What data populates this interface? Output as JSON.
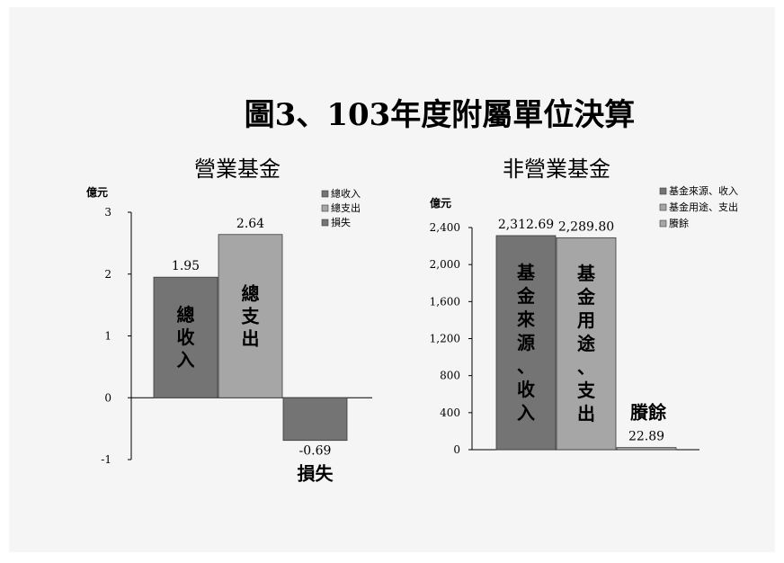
{
  "title": "圖3、103年度附屬單位決算",
  "colors": {
    "background_panel": "#f5f5f5",
    "bar_dark": "#747474",
    "bar_light": "#a6a6a6",
    "bar_stroke": "#3a3a3a",
    "axis": "#000000"
  },
  "chart_data": [
    {
      "type": "bar",
      "title": "營業基金",
      "unit_label": "億元",
      "ylim": [
        -1,
        3
      ],
      "yticks": [
        "3",
        "2",
        "1",
        "0",
        "-1"
      ],
      "ytick_values": [
        3,
        2,
        1,
        0,
        -1
      ],
      "categories": [
        "總收入",
        "總支出",
        "損失"
      ],
      "values": [
        1.95,
        2.64,
        -0.69
      ],
      "value_labels": [
        "1.95",
        "2.64",
        "-0.69"
      ],
      "bar_colors": [
        "#747474",
        "#a6a6a6",
        "#747474"
      ],
      "inner_labels": [
        "總\n收\n入",
        "總\n支\n出",
        ""
      ],
      "outside_labels": [
        "",
        "",
        "損失"
      ],
      "legend": [
        {
          "label": "總收入",
          "color": "#747474"
        },
        {
          "label": "總支出",
          "color": "#a6a6a6"
        },
        {
          "label": "損失",
          "color": "#747474"
        }
      ],
      "legend_position": "top-right",
      "grid": false
    },
    {
      "type": "bar",
      "title": "非營業基金",
      "unit_label": "億元",
      "ylim": [
        0,
        2400
      ],
      "yticks": [
        "2,400",
        "2,000",
        "1,600",
        "1,200",
        "800",
        "400",
        "0"
      ],
      "ytick_values": [
        2400,
        2000,
        1600,
        1200,
        800,
        400,
        0
      ],
      "categories": [
        "基金來源、收入",
        "基金用途、支出",
        "賸餘"
      ],
      "values": [
        2312.69,
        2289.8,
        22.89
      ],
      "value_labels": [
        "2,312.69",
        "2,289.80",
        "22.89"
      ],
      "bar_colors": [
        "#747474",
        "#a6a6a6",
        "#a6a6a6"
      ],
      "inner_labels": [
        "基\n金\n來\n源\n、\n收\n入",
        "基\n金\n用\n途\n、\n支\n出",
        ""
      ],
      "outside_labels": [
        "",
        "",
        "賸餘"
      ],
      "legend": [
        {
          "label": "基金來源、收入",
          "color": "#747474"
        },
        {
          "label": "基金用途、支出",
          "color": "#a6a6a6"
        },
        {
          "label": "賸餘",
          "color": "#a6a6a6"
        }
      ],
      "legend_position": "top-right",
      "grid": false
    }
  ]
}
